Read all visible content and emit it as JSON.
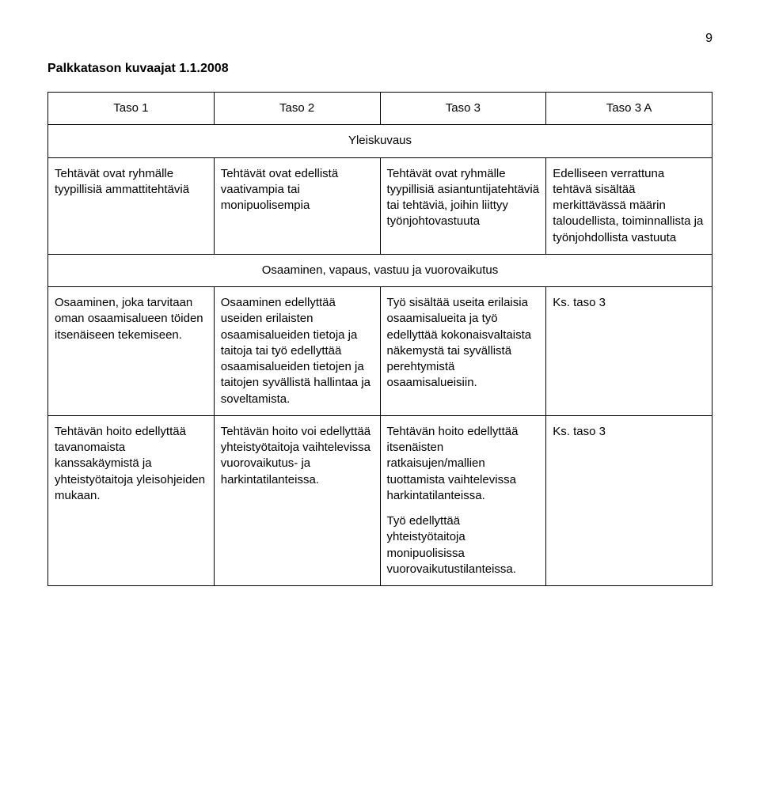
{
  "page_number": "9",
  "title": "Palkkatason kuvaajat 1.1.2008",
  "columns": [
    "Taso 1",
    "Taso 2",
    "Taso 3",
    "Taso 3 A"
  ],
  "section1_header": "Yleiskuvaus",
  "row1": {
    "c1": "Tehtävät ovat ryhmälle tyypillisiä ammattitehtäviä",
    "c2": "Tehtävät ovat edellistä vaativampia tai monipuolisempia",
    "c3": "Tehtävät ovat ryhmälle tyypillisiä asiantuntijatehtäviä tai tehtäviä, joihin liittyy työnjohtovastuuta",
    "c4": "Edelliseen verrattuna tehtävä sisältää merkittävässä määrin taloudellista, toiminnallista ja työnjohdollista vastuuta"
  },
  "section2_header": "Osaaminen, vapaus, vastuu ja vuorovaikutus",
  "row2": {
    "c1": "Osaaminen, joka tarvitaan oman osaamisalueen töiden itsenäiseen tekemiseen.",
    "c2": "Osaaminen edellyttää useiden erilaisten osaamisalueiden tietoja ja taitoja tai työ edellyttää osaamisalueiden tietojen ja taitojen syvällistä hallintaa ja soveltamista.",
    "c3": "Työ sisältää useita erilaisia osaamisalueita ja työ edellyttää kokonaisvaltaista näkemystä tai syvällistä perehtymistä osaamisalueisiin.",
    "c4": "Ks. taso 3"
  },
  "row3": {
    "c1": "Tehtävän hoito edellyttää tavanomaista kanssakäymistä ja yhteistyötaitoja yleisohjeiden mukaan.",
    "c2": "Tehtävän hoito voi edellyttää yhteistyötaitoja vaihtelevissa vuorovaikutus- ja harkintatilanteissa.",
    "c3a": "Tehtävän hoito edellyttää itsenäisten ratkaisujen/mallien tuottamista vaihtelevissa harkintatilanteissa.",
    "c3b": "Työ edellyttää yhteistyötaitoja monipuolisissa vuorovaikutustilanteissa.",
    "c4": "Ks. taso 3"
  }
}
